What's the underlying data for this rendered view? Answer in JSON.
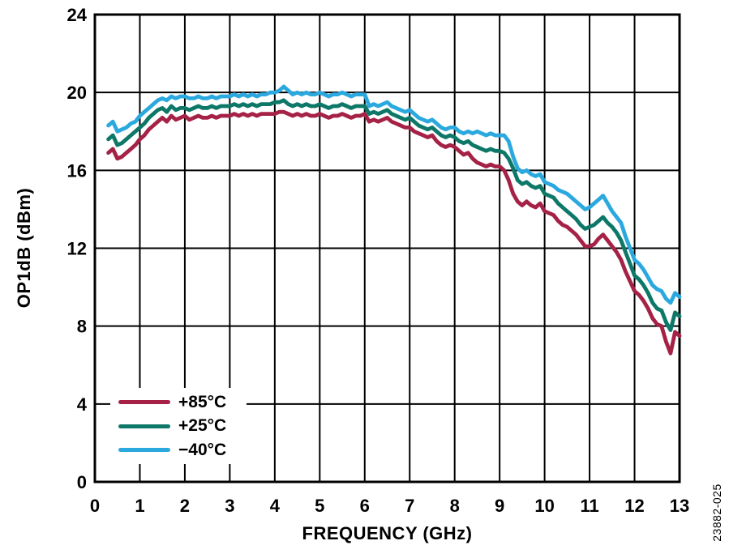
{
  "labels": {
    "xlabel": "FREQUENCY (GHz)",
    "ylabel": "OP1dB (dBm)",
    "watermark": "23882-025"
  },
  "colors": {
    "axis": "#000000",
    "grid": "#000000",
    "background": "#ffffff",
    "series_85c": "#A52246",
    "series_25c": "#0D7868",
    "series_m40c": "#2BA9DF"
  },
  "chart_data": {
    "type": "line",
    "title": "",
    "xlabel": "FREQUENCY (GHz)",
    "ylabel": "OP1dB (dBm)",
    "xlim": [
      0,
      13
    ],
    "ylim": [
      0,
      24
    ],
    "x_ticks": [
      0,
      1,
      2,
      3,
      4,
      5,
      6,
      7,
      8,
      9,
      10,
      11,
      12,
      13
    ],
    "y_ticks": [
      0,
      4,
      8,
      12,
      16,
      20,
      24
    ],
    "grid": true,
    "legend_position": "lower-left",
    "x_start": 0.3,
    "x_step": 0.1,
    "series": [
      {
        "name": "+85°C",
        "color": "#A52246",
        "values": [
          16.9,
          17.1,
          16.6,
          16.7,
          16.9,
          17.1,
          17.3,
          17.6,
          17.8,
          18.1,
          18.3,
          18.5,
          18.7,
          18.5,
          18.8,
          18.6,
          18.7,
          18.8,
          18.6,
          18.7,
          18.8,
          18.7,
          18.7,
          18.8,
          18.7,
          18.8,
          18.8,
          18.8,
          18.9,
          18.8,
          18.9,
          18.8,
          18.9,
          18.8,
          18.9,
          18.9,
          18.9,
          18.9,
          19.0,
          19.0,
          18.9,
          18.8,
          18.9,
          18.8,
          18.9,
          18.8,
          18.8,
          18.9,
          18.8,
          18.7,
          18.8,
          18.8,
          18.9,
          18.8,
          18.7,
          18.8,
          18.8,
          18.9,
          18.5,
          18.6,
          18.5,
          18.6,
          18.7,
          18.5,
          18.4,
          18.3,
          18.2,
          18.2,
          18.0,
          17.9,
          17.8,
          17.7,
          17.8,
          17.5,
          17.3,
          17.2,
          17.3,
          17.2,
          17.0,
          16.8,
          16.9,
          16.6,
          16.4,
          16.3,
          16.2,
          16.3,
          16.2,
          16.2,
          16.0,
          15.5,
          14.8,
          14.4,
          14.2,
          14.4,
          14.2,
          14.1,
          14.3,
          13.9,
          13.8,
          13.7,
          13.4,
          13.2,
          13.1,
          12.9,
          12.7,
          12.4,
          12.1,
          12.1,
          12.2,
          12.5,
          12.7,
          12.4,
          12.1,
          11.8,
          11.4,
          10.8,
          10.3,
          9.8,
          9.6,
          9.3,
          8.9,
          8.4,
          8.1,
          8.0,
          7.2,
          6.6,
          7.7,
          7.5
        ]
      },
      {
        "name": "+25°C",
        "color": "#0D7868",
        "values": [
          17.6,
          17.8,
          17.3,
          17.4,
          17.6,
          17.8,
          18.0,
          18.2,
          18.4,
          18.7,
          18.9,
          19.1,
          19.2,
          19.0,
          19.3,
          19.1,
          19.2,
          19.2,
          19.1,
          19.2,
          19.3,
          19.2,
          19.2,
          19.3,
          19.2,
          19.3,
          19.3,
          19.3,
          19.4,
          19.3,
          19.4,
          19.3,
          19.4,
          19.3,
          19.4,
          19.4,
          19.4,
          19.5,
          19.5,
          19.6,
          19.4,
          19.3,
          19.4,
          19.3,
          19.4,
          19.3,
          19.3,
          19.4,
          19.3,
          19.2,
          19.3,
          19.3,
          19.4,
          19.3,
          19.2,
          19.3,
          19.3,
          19.3,
          18.9,
          19.0,
          18.9,
          19.0,
          19.1,
          18.9,
          18.8,
          18.7,
          18.6,
          18.7,
          18.5,
          18.3,
          18.2,
          18.1,
          18.2,
          18.0,
          17.8,
          17.7,
          17.8,
          17.7,
          17.5,
          17.4,
          17.5,
          17.3,
          17.2,
          17.1,
          17.0,
          17.1,
          17.0,
          17.0,
          16.9,
          16.6,
          16.1,
          15.5,
          15.3,
          15.4,
          15.2,
          15.1,
          15.2,
          14.8,
          14.7,
          14.6,
          14.3,
          14.1,
          13.9,
          13.7,
          13.5,
          13.2,
          13.0,
          13.1,
          13.2,
          13.4,
          13.6,
          13.3,
          13.1,
          12.8,
          12.4,
          11.8,
          11.2,
          10.6,
          10.4,
          10.1,
          9.7,
          9.2,
          8.9,
          8.8,
          8.2,
          7.8,
          8.7,
          8.5
        ]
      },
      {
        "name": "−40°C",
        "color": "#2BA9DF",
        "values": [
          18.3,
          18.5,
          18.0,
          18.1,
          18.2,
          18.4,
          18.5,
          18.8,
          19.0,
          19.2,
          19.4,
          19.6,
          19.7,
          19.6,
          19.8,
          19.7,
          19.8,
          19.8,
          19.7,
          19.7,
          19.8,
          19.7,
          19.7,
          19.8,
          19.7,
          19.8,
          19.8,
          19.8,
          19.9,
          19.8,
          19.9,
          19.8,
          19.9,
          19.8,
          19.9,
          19.9,
          20.0,
          20.0,
          20.1,
          20.3,
          20.1,
          19.9,
          20.0,
          19.9,
          20.0,
          19.9,
          19.9,
          20.0,
          19.9,
          19.8,
          19.9,
          19.9,
          20.0,
          19.9,
          19.8,
          19.9,
          19.9,
          19.9,
          19.3,
          19.4,
          19.3,
          19.4,
          19.5,
          19.3,
          19.2,
          19.1,
          19.0,
          19.1,
          18.9,
          18.7,
          18.6,
          18.5,
          18.6,
          18.4,
          18.2,
          18.1,
          18.2,
          18.2,
          18.0,
          17.9,
          18.0,
          17.9,
          18.0,
          17.9,
          17.8,
          17.9,
          17.8,
          17.8,
          17.8,
          17.5,
          16.7,
          16.1,
          15.9,
          16.0,
          15.8,
          15.7,
          15.8,
          15.4,
          15.3,
          15.2,
          15.0,
          14.9,
          14.8,
          14.6,
          14.4,
          14.2,
          14.0,
          14.1,
          14.3,
          14.5,
          14.7,
          14.3,
          13.9,
          13.6,
          13.3,
          12.6,
          12.0,
          11.4,
          11.2,
          10.9,
          10.5,
          10.1,
          9.9,
          9.8,
          9.4,
          9.2,
          9.7,
          9.5
        ]
      }
    ]
  }
}
